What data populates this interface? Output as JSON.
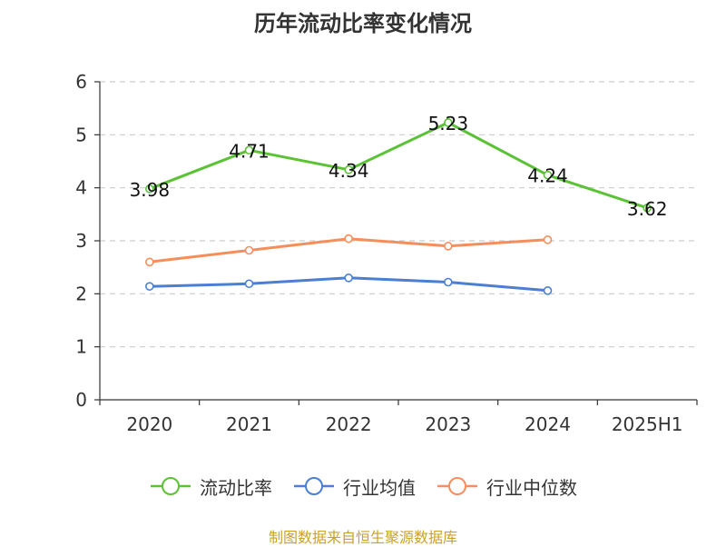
{
  "title": "历年流动比率变化情况",
  "source": "制图数据来自恒生聚源数据库",
  "chart_data": {
    "type": "line",
    "title": "历年流动比率变化情况",
    "xlabel": "",
    "ylabel": "",
    "categories": [
      "2020",
      "2021",
      "2022",
      "2023",
      "2024",
      "2025H1"
    ],
    "ylim": [
      0,
      6
    ],
    "yticks": [
      0,
      1,
      2,
      3,
      4,
      5,
      6
    ],
    "grid": true,
    "legend_position": "bottom",
    "series": [
      {
        "name": "流动比率",
        "color": "#5bc236",
        "values": [
          3.98,
          4.71,
          4.34,
          5.23,
          4.24,
          3.62
        ],
        "labels": [
          "3.98",
          "4.71",
          "4.34",
          "5.23",
          "4.24",
          "3.62"
        ]
      },
      {
        "name": "行业均值",
        "color": "#4a7fd4",
        "values": [
          2.14,
          2.19,
          2.3,
          2.22,
          2.06,
          null
        ]
      },
      {
        "name": "行业中位数",
        "color": "#f68e5c",
        "values": [
          2.6,
          2.82,
          3.04,
          2.9,
          3.02,
          null
        ]
      }
    ]
  }
}
